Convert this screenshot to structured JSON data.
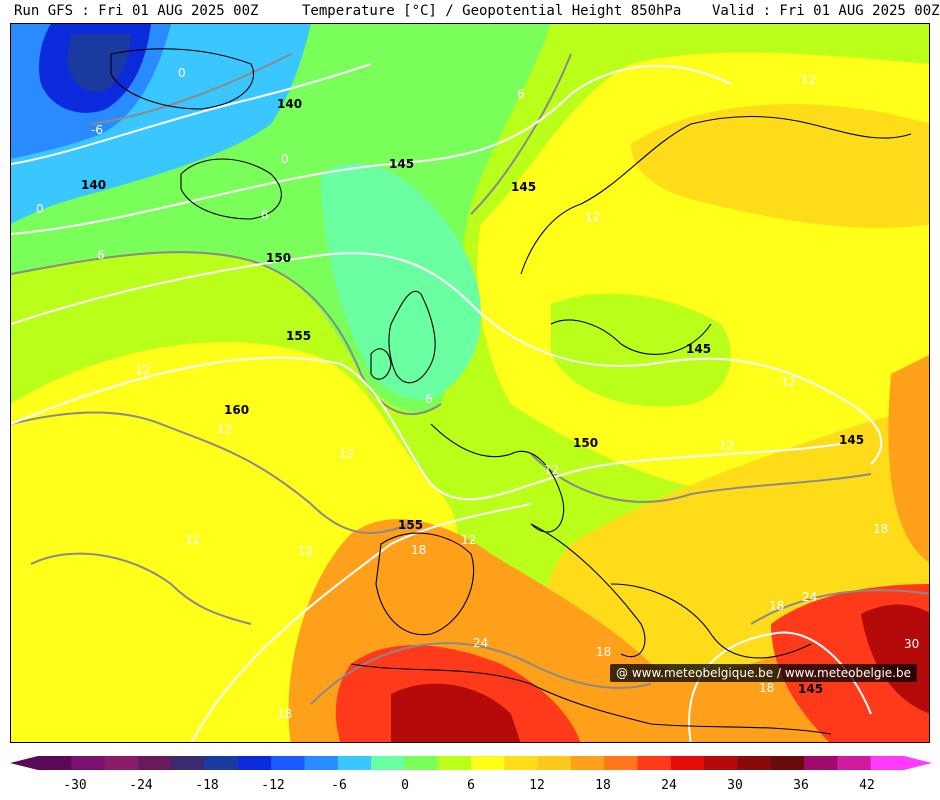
{
  "header": {
    "run": "Run GFS : Fri 01 AUG 2025 00Z",
    "title": "Temperature [°C] / Geopotential Height 850hPa",
    "valid": "Valid : Fri 01 AUG 2025 00Z"
  },
  "credit": "@ www.meteobelgique.be / www.meteobelgie.be",
  "geopotential_labels": [
    "140",
    "145",
    "150",
    "155",
    "160"
  ],
  "isotherm_labels": [
    "-6",
    "0",
    "6",
    "12",
    "18",
    "24",
    "30"
  ],
  "colorbar": {
    "ticks": [
      "-30",
      "-24",
      "-18",
      "-12",
      "-6",
      "0",
      "6",
      "12",
      "18",
      "24",
      "30",
      "36",
      "42"
    ],
    "colors": [
      "#5a0a55",
      "#7a1070",
      "#8a1a6a",
      "#6a1a5a",
      "#3a2a70",
      "#1a3aa0",
      "#0a2adc",
      "#1a5aff",
      "#2a8aff",
      "#3ac6ff",
      "#6affa0",
      "#7aff5a",
      "#baff1a",
      "#ffff1a",
      "#ffdc1a",
      "#ffc81a",
      "#ffa01a",
      "#ff781a",
      "#ff3a1a",
      "#e60a0a",
      "#b40a0a",
      "#8a0a0a",
      "#6a0a0a",
      "#a00a6a",
      "#d01aa0",
      "#ff3aff"
    ]
  },
  "colors": {
    "cold_blue": "#1a5aff",
    "green": "#6affa0",
    "yellow_green": "#baff1a",
    "yellow": "#ffff1a",
    "orange": "#ffa01a",
    "red": "#e60a0a"
  }
}
